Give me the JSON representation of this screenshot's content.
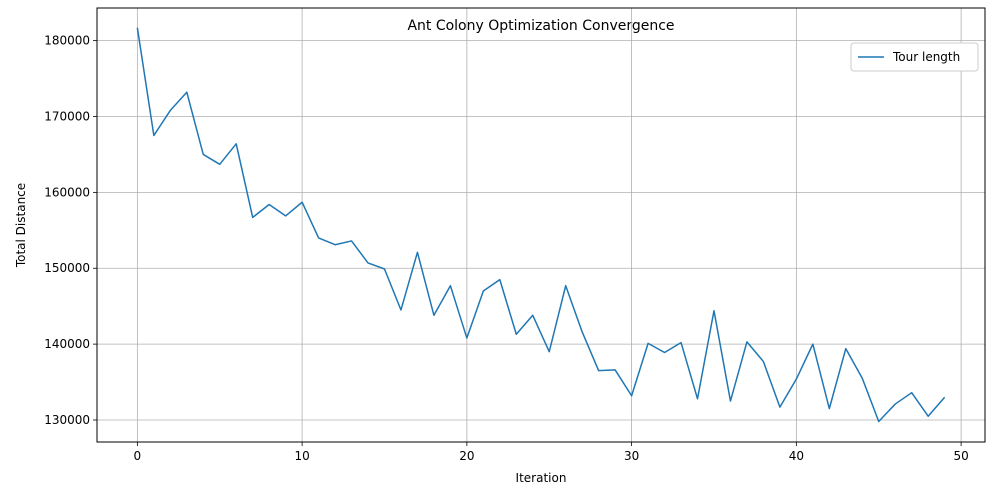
{
  "chart_data": {
    "type": "line",
    "title": "Ant Colony Optimization Convergence",
    "xlabel": "Iteration",
    "ylabel": "Total Distance",
    "xlim": [
      -2.45,
      51.45
    ],
    "ylim": [
      127100,
      184300
    ],
    "xticks": [
      0,
      10,
      20,
      30,
      40,
      50
    ],
    "yticks": [
      130000,
      140000,
      150000,
      160000,
      170000,
      180000
    ],
    "grid": true,
    "legend_position": "top-right",
    "colors": {
      "series": "#1f77b4",
      "grid": "#b0b0b0"
    },
    "series": [
      {
        "name": "Tour length",
        "x": [
          0,
          1,
          2,
          3,
          4,
          5,
          6,
          7,
          8,
          9,
          10,
          11,
          12,
          13,
          14,
          15,
          16,
          17,
          18,
          19,
          20,
          21,
          22,
          23,
          24,
          25,
          26,
          27,
          28,
          29,
          30,
          31,
          32,
          33,
          34,
          35,
          36,
          37,
          38,
          39,
          40,
          41,
          42,
          43,
          44,
          45,
          46,
          47,
          48,
          49
        ],
        "values": [
          181700,
          167500,
          170800,
          173200,
          165000,
          163700,
          166400,
          156700,
          158400,
          156900,
          158700,
          154000,
          153100,
          153600,
          150700,
          149900,
          144500,
          152100,
          143800,
          147700,
          140800,
          147000,
          148500,
          141300,
          143800,
          139000,
          147700,
          141600,
          136500,
          136600,
          133200,
          140100,
          138900,
          140200,
          132800,
          144400,
          132500,
          140300,
          137700,
          131700,
          135400,
          140000,
          131500,
          139400,
          135500,
          129800,
          132100,
          133600,
          130500,
          133000
        ]
      }
    ]
  }
}
